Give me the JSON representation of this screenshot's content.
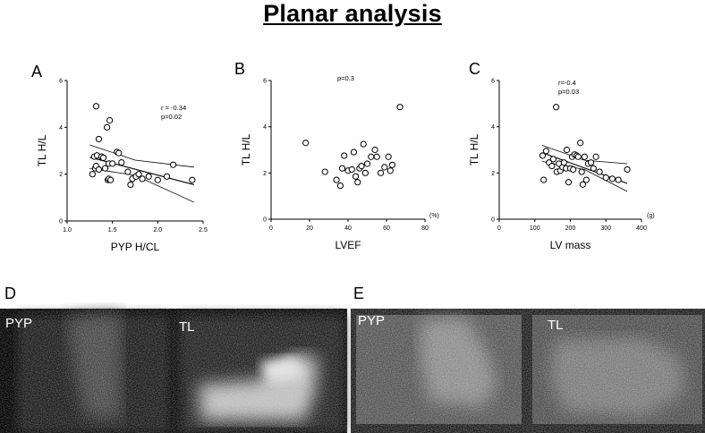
{
  "title": "Planar analysis",
  "panels": {
    "A": "A",
    "B": "B",
    "C": "C",
    "D": "D",
    "E": "E"
  },
  "chart_data": [
    {
      "type": "scatter",
      "panel": "A",
      "xlabel": "PYP H/CL",
      "ylabel": "TL H/L",
      "xlim": [
        1.0,
        2.5
      ],
      "ylim": [
        0,
        6
      ],
      "xticks": [
        "1.0",
        "1.5",
        "2.0",
        "2.5"
      ],
      "yticks": [
        "0",
        "2",
        "4",
        "6"
      ],
      "annotations": [
        "r = -0.34",
        "p=0.02"
      ],
      "x": [
        1.28,
        1.3,
        1.31,
        1.32,
        1.32,
        1.33,
        1.35,
        1.35,
        1.38,
        1.4,
        1.42,
        1.44,
        1.45,
        1.46,
        1.46,
        1.47,
        1.48,
        1.5,
        1.55,
        1.57,
        1.6,
        1.67,
        1.7,
        1.72,
        1.76,
        1.79,
        1.83,
        1.9,
        2.0,
        2.1,
        2.17,
        2.38
      ],
      "y": [
        2.0,
        2.75,
        2.25,
        4.9,
        2.35,
        2.8,
        3.5,
        2.2,
        2.75,
        2.7,
        2.25,
        4.0,
        1.75,
        1.8,
        2.45,
        4.3,
        1.75,
        2.45,
        2.95,
        2.9,
        2.5,
        2.1,
        1.55,
        1.8,
        1.9,
        2.0,
        1.8,
        1.9,
        1.75,
        1.9,
        2.4,
        1.75
      ],
      "fit_line": {
        "x": [
          1.25,
          2.4
        ],
        "y": [
          2.72,
          1.55
        ]
      },
      "ci_upper": {
        "x": [
          1.25,
          1.75,
          2.4
        ],
        "y": [
          3.25,
          2.6,
          2.3
        ]
      },
      "ci_lower": {
        "x": [
          1.25,
          1.75,
          2.4
        ],
        "y": [
          2.25,
          1.95,
          0.8
        ]
      }
    },
    {
      "type": "scatter",
      "panel": "B",
      "xlabel": "LVEF",
      "ylabel": "TL H/L",
      "xunit": "(%)",
      "xlim": [
        0,
        80
      ],
      "ylim": [
        0,
        6
      ],
      "xticks": [
        "0",
        "20",
        "40",
        "60",
        "80"
      ],
      "yticks": [
        "0",
        "2",
        "4",
        "6"
      ],
      "annotations": [
        "p=0.3"
      ],
      "x": [
        18,
        28,
        34,
        36,
        37,
        38,
        40,
        42,
        43,
        44,
        45,
        46,
        47,
        48,
        49,
        50,
        52,
        54,
        55,
        57,
        59,
        61,
        62,
        63,
        67
      ],
      "y": [
        3.3,
        2.05,
        1.7,
        1.45,
        2.2,
        2.75,
        2.1,
        2.15,
        2.9,
        1.85,
        1.6,
        2.2,
        2.3,
        3.25,
        2.0,
        2.4,
        2.7,
        3.0,
        2.7,
        2.0,
        2.25,
        2.7,
        2.1,
        2.35,
        4.85
      ]
    },
    {
      "type": "scatter",
      "panel": "C",
      "xlabel": "LV mass",
      "ylabel": "TL H/L",
      "xunit": "(g)",
      "xlim": [
        0,
        400
      ],
      "ylim": [
        0,
        6
      ],
      "xticks": [
        "0",
        "100",
        "200",
        "300",
        "400"
      ],
      "yticks": [
        "0",
        "2",
        "4",
        "6"
      ],
      "annotations": [
        "r=-0.4",
        "p=0.03"
      ],
      "x": [
        122,
        125,
        132,
        140,
        148,
        152,
        160,
        162,
        168,
        172,
        178,
        182,
        188,
        190,
        195,
        200,
        205,
        208,
        212,
        218,
        222,
        228,
        232,
        235,
        240,
        245,
        250,
        258,
        265,
        272,
        282,
        300,
        318,
        335,
        360
      ],
      "y": [
        2.75,
        1.7,
        2.95,
        2.45,
        2.3,
        2.6,
        4.85,
        2.05,
        2.4,
        2.1,
        2.25,
        2.45,
        2.2,
        3.0,
        1.6,
        2.2,
        2.7,
        2.15,
        2.8,
        2.75,
        2.7,
        3.3,
        2.05,
        1.5,
        2.7,
        1.7,
        2.4,
        2.45,
        2.2,
        2.7,
        2.05,
        1.8,
        1.75,
        1.7,
        2.15
      ],
      "fit_line": {
        "x": [
          120,
          360
        ],
        "y": [
          2.88,
          1.55
        ]
      },
      "ci_upper": {
        "x": [
          120,
          240,
          360
        ],
        "y": [
          3.2,
          2.55,
          2.4
        ]
      },
      "ci_lower": {
        "x": [
          120,
          240,
          360
        ],
        "y": [
          2.5,
          2.15,
          1.2
        ]
      }
    }
  ],
  "images": {
    "D": {
      "left_label": "PYP",
      "right_label": "TL"
    },
    "E": {
      "left_label": "PYP",
      "right_label": "TL"
    }
  }
}
